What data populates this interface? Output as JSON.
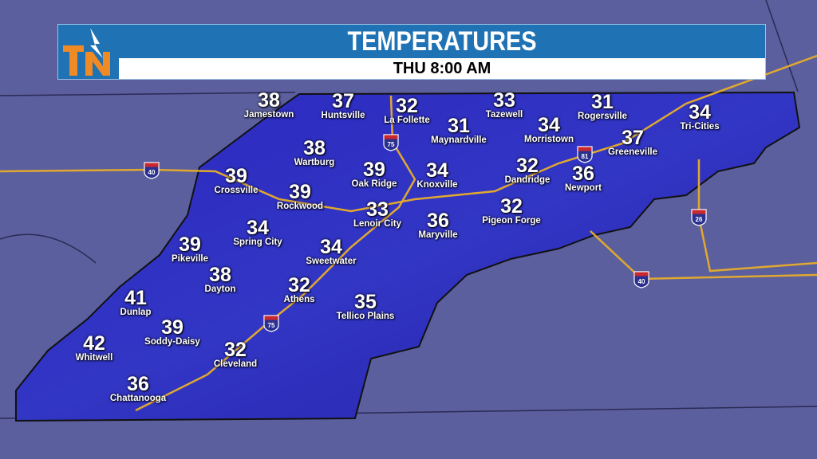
{
  "header": {
    "title": "TEMPERATURES",
    "subtitle": "THU 8:00 AM",
    "logo_text": "TN"
  },
  "colors": {
    "region": "#2a26b8",
    "background": "#5b5f9e",
    "banner": "#1f72b3",
    "logo": "#f08a24",
    "roads": "#e0a830"
  },
  "cities": [
    {
      "name": "Jamestown",
      "temp": "38"
    },
    {
      "name": "Huntsville",
      "temp": "37"
    },
    {
      "name": "La Follette",
      "temp": "32"
    },
    {
      "name": "Tazewell",
      "temp": "33"
    },
    {
      "name": "Rogersville",
      "temp": "31"
    },
    {
      "name": "Tri-Cities",
      "temp": "34"
    },
    {
      "name": "Maynardville",
      "temp": "31"
    },
    {
      "name": "Morristown",
      "temp": "34"
    },
    {
      "name": "Greeneville",
      "temp": "37"
    },
    {
      "name": "Wartburg",
      "temp": "38"
    },
    {
      "name": "Oak Ridge",
      "temp": "39"
    },
    {
      "name": "Knoxville",
      "temp": "34"
    },
    {
      "name": "Dandridge",
      "temp": "32"
    },
    {
      "name": "Newport",
      "temp": "36"
    },
    {
      "name": "Crossville",
      "temp": "39"
    },
    {
      "name": "Rockwood",
      "temp": "39"
    },
    {
      "name": "Lenoir City",
      "temp": "33"
    },
    {
      "name": "Maryville",
      "temp": "36"
    },
    {
      "name": "Pigeon Forge",
      "temp": "32"
    },
    {
      "name": "Spring City",
      "temp": "34"
    },
    {
      "name": "Sweetwater",
      "temp": "34"
    },
    {
      "name": "Pikeville",
      "temp": "39"
    },
    {
      "name": "Dayton",
      "temp": "38"
    },
    {
      "name": "Dunlap",
      "temp": "41"
    },
    {
      "name": "Athens",
      "temp": "32"
    },
    {
      "name": "Tellico Plains",
      "temp": "35"
    },
    {
      "name": "Soddy-Daisy",
      "temp": "39"
    },
    {
      "name": "Whitwell",
      "temp": "42"
    },
    {
      "name": "Cleveland",
      "temp": "32"
    },
    {
      "name": "Chattanooga",
      "temp": "36"
    }
  ],
  "interstates": [
    "40",
    "75",
    "81",
    "26",
    "40",
    "75"
  ]
}
